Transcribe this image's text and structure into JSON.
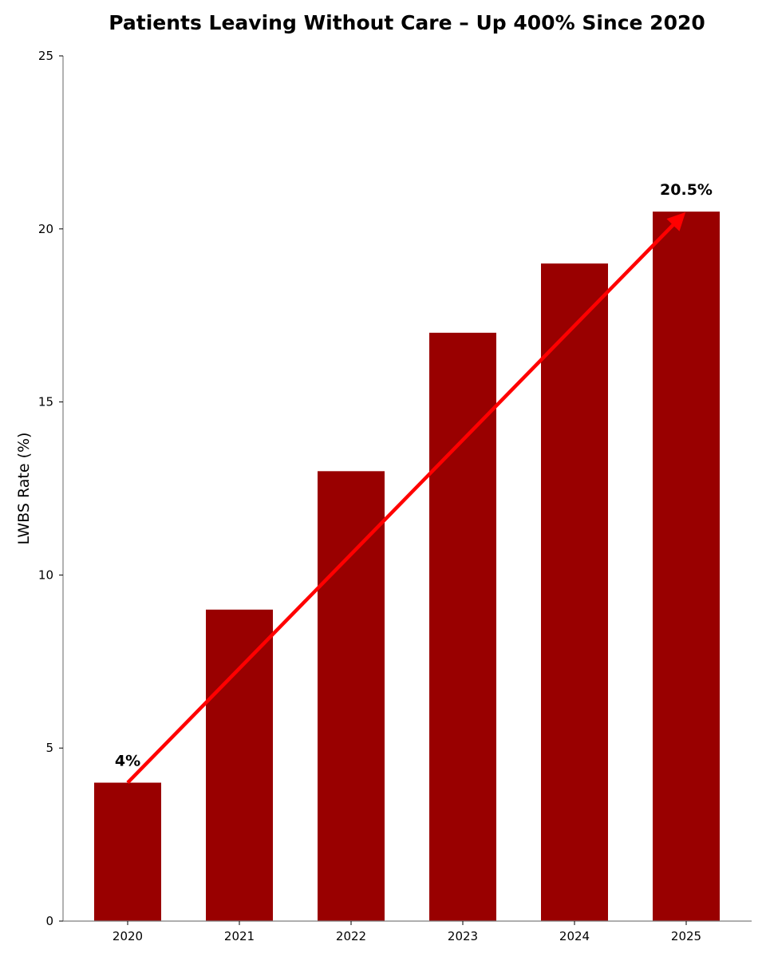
{
  "chart_data": {
    "type": "bar",
    "title": "Patients Leaving Without Care – Up 400% Since 2020",
    "xlabel": "",
    "ylabel": "LWBS Rate (%)",
    "categories": [
      "2020",
      "2021",
      "2022",
      "2023",
      "2024",
      "2025"
    ],
    "values": [
      4,
      9,
      13,
      17,
      19,
      20.5
    ],
    "ylim": [
      0,
      25
    ],
    "yticks": [
      0,
      5,
      10,
      15,
      20,
      25
    ],
    "grid": false,
    "legend": "none",
    "colors": {
      "bar": "#990000",
      "trend_arrow": "#ff0000",
      "axis": "#7f7f7f"
    },
    "annotations": [
      {
        "text": "4%",
        "category": "2020",
        "value": 4
      },
      {
        "text": "20.5%",
        "category": "2025",
        "value": 20.5
      }
    ],
    "trend_arrow": {
      "from": {
        "category": "2020",
        "value": 4
      },
      "to": {
        "category": "2025",
        "value": 20.5
      }
    }
  }
}
